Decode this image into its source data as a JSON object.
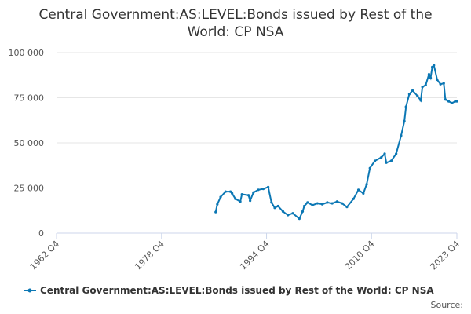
{
  "chart_data": {
    "type": "line",
    "title": "Central Government:AS:LEVEL:Bonds issued by Rest of the World: CP NSA",
    "source": "Source:",
    "x": [
      1987.0,
      1987.25,
      1987.75,
      1988.5,
      1989.25,
      1989.5,
      1990.0,
      1990.75,
      1991.0,
      1992.0,
      1992.25,
      1992.75,
      1993.5,
      1994.25,
      1995.0,
      1995.5,
      1996.0,
      1996.5,
      1997.25,
      1998.0,
      1998.75,
      1999.75,
      2000.25,
      2000.5,
      2001.0,
      2001.75,
      2002.5,
      2003.25,
      2004.0,
      2004.75,
      2005.5,
      2006.25,
      2007.0,
      2008.0,
      2008.75,
      2009.5,
      2010.0,
      2010.5,
      2011.25,
      2012.25,
      2012.75,
      2013.0,
      2013.75,
      2014.5,
      2015.25,
      2015.75,
      2016.0,
      2016.5,
      2017.0,
      2017.75,
      2018.25,
      2018.5,
      2019.0,
      2019.5,
      2019.75,
      2020.0,
      2020.25,
      2020.75,
      2021.25,
      2021.75,
      2022.0,
      2022.5,
      2023.0,
      2023.5,
      2023.75
    ],
    "series": [
      {
        "name": "Central Government:AS:LEVEL:Bonds issued by Rest of the World: CP NSA",
        "color": "#0b77b4",
        "values": [
          11700,
          16000,
          20000,
          23000,
          23000,
          22000,
          19000,
          17500,
          21500,
          21000,
          18000,
          22500,
          24000,
          24500,
          25500,
          17000,
          14000,
          15000,
          12000,
          10000,
          11000,
          8000,
          12000,
          15000,
          17000,
          15500,
          16500,
          16000,
          17000,
          16500,
          17500,
          16500,
          14500,
          19000,
          24000,
          22000,
          27000,
          36000,
          40000,
          42000,
          44000,
          39000,
          40000,
          44000,
          54000,
          62000,
          70000,
          77000,
          79000,
          76000,
          73500,
          81000,
          82000,
          88000,
          86000,
          92000,
          93000,
          85000,
          82500,
          83000,
          74000,
          73000,
          72000,
          73000,
          73000
        ]
      }
    ],
    "xlim": [
      1962.75,
      2023.75
    ],
    "xticks": [
      {
        "value": 1962.75,
        "label": "1962 Q4"
      },
      {
        "value": 1978.75,
        "label": "1978 Q4"
      },
      {
        "value": 1994.75,
        "label": "1994 Q4"
      },
      {
        "value": 2010.75,
        "label": "2010 Q4"
      },
      {
        "value": 2023.75,
        "label": "2023 Q4"
      }
    ],
    "ylim": [
      0,
      100000
    ],
    "yticks": [
      0,
      {
        "value": 25000,
        "label": "25 000"
      },
      {
        "value": 50000,
        "label": "50 000"
      },
      {
        "value": 75000,
        "label": "75 000"
      },
      {
        "value": 100000,
        "label": "100 000"
      }
    ],
    "grid": true
  }
}
